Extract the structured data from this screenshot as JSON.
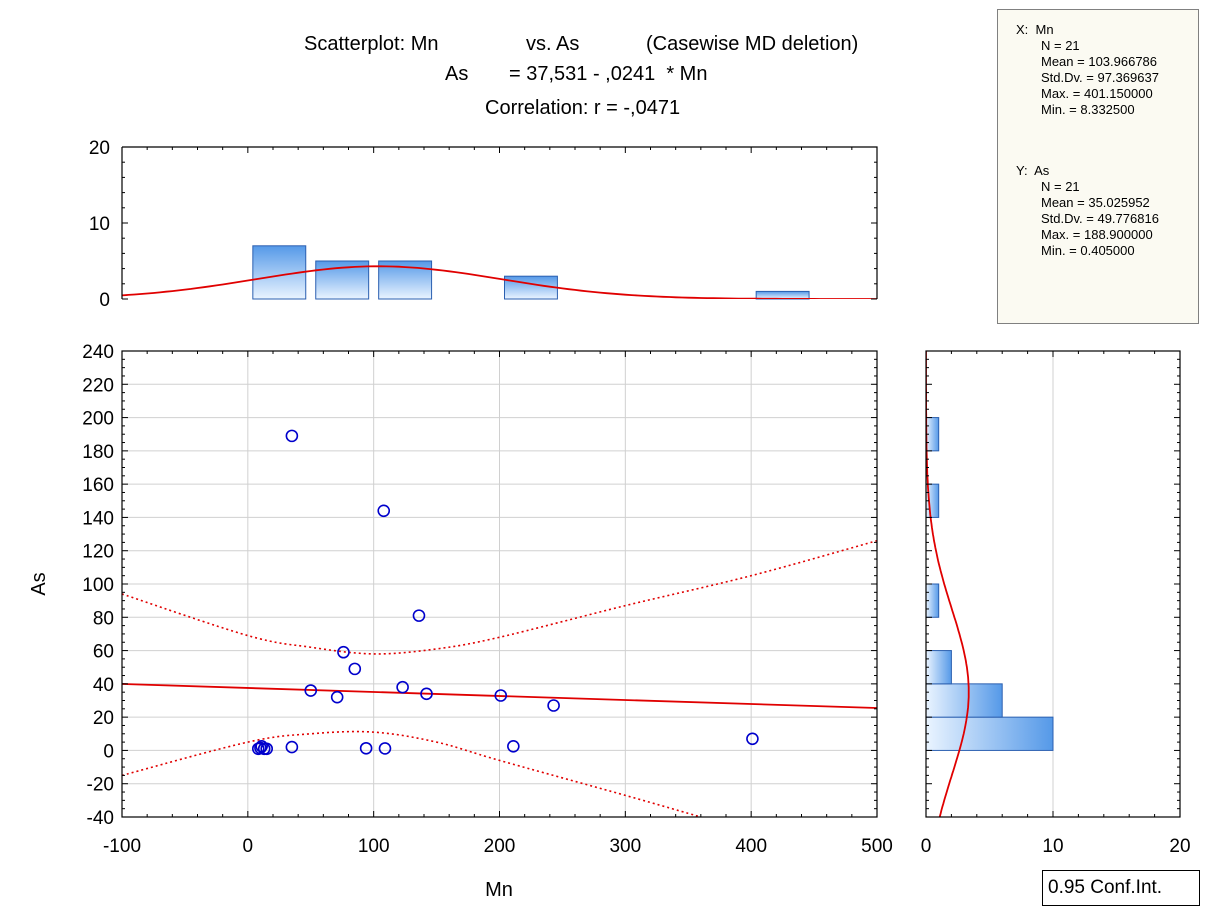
{
  "title": {
    "line1_part1": "Scatterplot: Mn",
    "line1_part2": "vs. As",
    "line1_part3": "(Casewise MD deletion)",
    "line2_part1": "As",
    "line2_part2": "= 37,531 - ,0241  * Mn",
    "line3": "Correlation: r = -,0471"
  },
  "stats": {
    "x_header": "X:  Mn",
    "x_lines": [
      "N = 21",
      "Mean = 103.966786",
      "Std.Dv. = 97.369637",
      "Max. = 401.150000",
      "Min. = 8.332500"
    ],
    "y_header": "Y:  As",
    "y_lines": [
      "N = 21",
      "Mean = 35.025952",
      "Std.Dv. = 49.776816",
      "Max. = 188.900000",
      "Min. = 0.405000"
    ]
  },
  "legend_label": "0.95 Conf.Int.",
  "colors": {
    "fit_line": "#e00000",
    "confidence": "#e00000",
    "normal_curve": "#e00000",
    "points": "#0000cc",
    "bar_stroke": "#2a5fb0",
    "bar_fill_dark": "#5599e8",
    "bar_fill_light": "#eaf4ff",
    "grid": "#d0d0d0"
  },
  "chart_data": {
    "type": "scatter",
    "title": "Scatterplot: Mn vs. As (Casewise MD deletion)",
    "xlabel": "Mn",
    "ylabel": "As",
    "xlim": [
      -100,
      500
    ],
    "ylim": [
      -40,
      240
    ],
    "xticks": [
      -100,
      0,
      100,
      200,
      300,
      400,
      500
    ],
    "yticks": [
      -40,
      -20,
      0,
      20,
      40,
      60,
      80,
      100,
      120,
      140,
      160,
      180,
      200,
      220,
      240
    ],
    "grid": true,
    "points": [
      {
        "x": 35,
        "y": 189
      },
      {
        "x": 108,
        "y": 144
      },
      {
        "x": 136,
        "y": 81
      },
      {
        "x": 76,
        "y": 59
      },
      {
        "x": 85,
        "y": 49
      },
      {
        "x": 123,
        "y": 38
      },
      {
        "x": 50,
        "y": 36
      },
      {
        "x": 142,
        "y": 34
      },
      {
        "x": 71,
        "y": 32
      },
      {
        "x": 201,
        "y": 33
      },
      {
        "x": 243,
        "y": 27
      },
      {
        "x": 401,
        "y": 7
      },
      {
        "x": 8.3,
        "y": 1
      },
      {
        "x": 10,
        "y": 1.5
      },
      {
        "x": 11,
        "y": 2.5
      },
      {
        "x": 13,
        "y": 1
      },
      {
        "x": 15,
        "y": 1
      },
      {
        "x": 35,
        "y": 2
      },
      {
        "x": 94,
        "y": 1.3
      },
      {
        "x": 109,
        "y": 1.2
      },
      {
        "x": 211,
        "y": 2.5
      }
    ],
    "regression": {
      "intercept": 37.531,
      "slope": -0.0241
    },
    "confidence_upper": [
      {
        "x": -100,
        "y": 94
      },
      {
        "x": 0,
        "y": 69
      },
      {
        "x": 50,
        "y": 62
      },
      {
        "x": 100,
        "y": 58
      },
      {
        "x": 150,
        "y": 61
      },
      {
        "x": 200,
        "y": 68
      },
      {
        "x": 300,
        "y": 87
      },
      {
        "x": 400,
        "y": 105
      },
      {
        "x": 500,
        "y": 126
      }
    ],
    "confidence_lower": [
      {
        "x": -100,
        "y": -15
      },
      {
        "x": 0,
        "y": 5
      },
      {
        "x": 50,
        "y": 10
      },
      {
        "x": 100,
        "y": 11
      },
      {
        "x": 150,
        "y": 5
      },
      {
        "x": 200,
        "y": -6
      },
      {
        "x": 300,
        "y": -27
      },
      {
        "x": 360,
        "y": -40
      }
    ],
    "x_histogram": {
      "ylim": [
        0,
        20
      ],
      "yticks": [
        0,
        10,
        20
      ],
      "bins": [
        {
          "x0": 0,
          "x1": 50,
          "count": 7
        },
        {
          "x0": 50,
          "x1": 100,
          "count": 5
        },
        {
          "x0": 100,
          "x1": 150,
          "count": 5
        },
        {
          "x0": 200,
          "x1": 250,
          "count": 3
        },
        {
          "x0": 400,
          "x1": 450,
          "count": 1
        }
      ],
      "normal": {
        "mean": 103.966786,
        "sd": 97.369637,
        "n": 21,
        "bin_width": 50
      }
    },
    "y_histogram": {
      "xlim": [
        0,
        20
      ],
      "xticks": [
        0,
        10,
        20
      ],
      "bins": [
        {
          "y0": 0,
          "y1": 20,
          "count": 10
        },
        {
          "y0": 20,
          "y1": 40,
          "count": 6
        },
        {
          "y0": 40,
          "y1": 60,
          "count": 2
        },
        {
          "y0": 80,
          "y1": 100,
          "count": 1
        },
        {
          "y0": 140,
          "y1": 160,
          "count": 1
        },
        {
          "y0": 180,
          "y1": 200,
          "count": 1
        }
      ],
      "normal": {
        "mean": 35.025952,
        "sd": 49.776816,
        "n": 21,
        "bin_width": 20
      }
    }
  }
}
